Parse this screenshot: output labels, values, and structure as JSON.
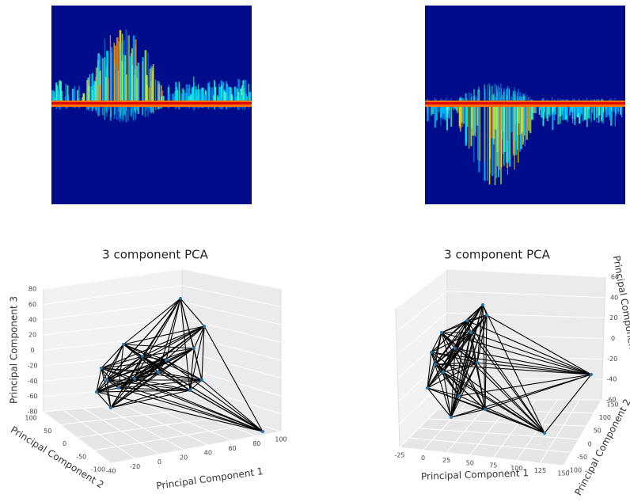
{
  "panels": [
    {
      "title": "3 component PCA",
      "xlabel": "Principal Component 1",
      "ylabel": "Principal Component 2",
      "zlabel": "Principal Component 3",
      "xticks": [
        -40,
        -20,
        0,
        20,
        40,
        60,
        80,
        100
      ],
      "yticks": [
        100,
        50,
        0,
        -50,
        -100
      ],
      "zticks": [
        80,
        60,
        40,
        20,
        0,
        -20,
        -40,
        -60,
        -80
      ]
    },
    {
      "title": "3 component PCA",
      "xlabel": "Principal Component 1",
      "ylabel": "Principal Component 2",
      "zlabel": "Principal Component 3",
      "xticks": [
        -25,
        0,
        25,
        50,
        75,
        100,
        125,
        150
      ],
      "yticks": [
        150,
        100,
        50,
        0,
        -50,
        -100
      ],
      "zticks": [
        60,
        40,
        20,
        0,
        -20,
        -40,
        -60
      ]
    }
  ]
}
